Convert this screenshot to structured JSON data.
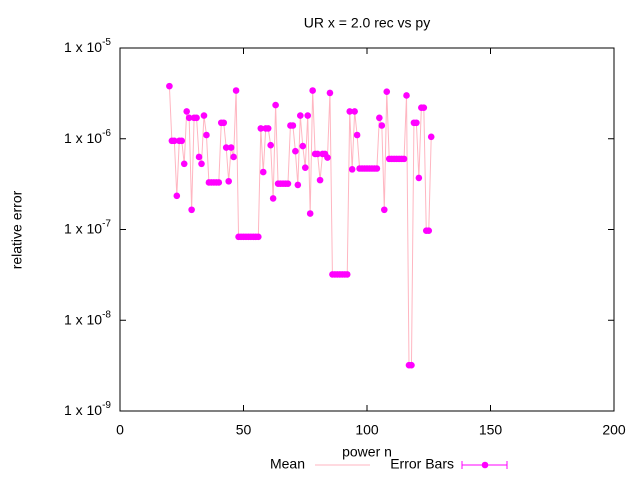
{
  "chart_data": {
    "type": "scatter",
    "title": "UR x = 2.0 rec vs py",
    "x_label": "power n",
    "y_label": "relative error",
    "y_scale": "log",
    "xlim": [
      0,
      200
    ],
    "xticks": [
      0,
      50,
      100,
      150,
      200
    ],
    "ylim": [
      1e-09,
      1e-05
    ],
    "yticks": [
      {
        "value": 1e-09,
        "label": "1 x 10",
        "sup": "-9"
      },
      {
        "value": 1e-08,
        "label": "1 x 10",
        "sup": "-8"
      },
      {
        "value": 1e-07,
        "label": "1 x 10",
        "sup": "-7"
      },
      {
        "value": 1e-06,
        "label": "1 x 10",
        "sup": "-6"
      },
      {
        "value": 1e-05,
        "label": "1 x 10",
        "sup": "-5"
      }
    ],
    "legend": [
      {
        "name": "Mean",
        "color": "#ffb6c1"
      },
      {
        "name": "Error Bars",
        "color": "#ff00ff"
      }
    ],
    "x": [
      20,
      21,
      22,
      23,
      24,
      25,
      26,
      27,
      28,
      29,
      30,
      31,
      32,
      33,
      34,
      35,
      36,
      37,
      38,
      39,
      40,
      41,
      42,
      43,
      44,
      45,
      46,
      47,
      48,
      49,
      50,
      51,
      52,
      53,
      54,
      55,
      56,
      57,
      58,
      59,
      60,
      61,
      62,
      63,
      64,
      65,
      66,
      67,
      68,
      69,
      70,
      71,
      72,
      73,
      74,
      75,
      76,
      77,
      78,
      79,
      80,
      81,
      82,
      83,
      84,
      85,
      86,
      87,
      88,
      89,
      90,
      91,
      92,
      93,
      94,
      95,
      96,
      97,
      98,
      99,
      100,
      101,
      102,
      103,
      104,
      105,
      106,
      107,
      108,
      109,
      110,
      111,
      112,
      113,
      114,
      115,
      116,
      117,
      118,
      119,
      120,
      121,
      122,
      123,
      124,
      125,
      126
    ],
    "values": [
      3.8e-06,
      9.5e-07,
      9.5e-07,
      2.35e-07,
      9.5e-07,
      9.5e-07,
      5.3e-07,
      2e-06,
      1.7e-06,
      1.65e-07,
      1.7e-06,
      1.7e-06,
      6.3e-07,
      5.3e-07,
      1.8e-06,
      1.1e-06,
      3.3e-07,
      3.3e-07,
      3.3e-07,
      3.3e-07,
      3.3e-07,
      1.5e-06,
      1.5e-06,
      8e-07,
      3.4e-07,
      8e-07,
      6.3e-07,
      3.4e-06,
      8.3e-08,
      8.3e-08,
      8.3e-08,
      8.3e-08,
      8.3e-08,
      8.3e-08,
      8.3e-08,
      8.3e-08,
      8.3e-08,
      1.3e-06,
      4.3e-07,
      1.3e-06,
      1.3e-06,
      8.5e-07,
      2.2e-07,
      2.35e-06,
      3.2e-07,
      3.2e-07,
      3.2e-07,
      3.2e-07,
      3.2e-07,
      1.4e-06,
      1.4e-06,
      7.3e-07,
      3.1e-07,
      1.8e-06,
      8.3e-07,
      4.8e-07,
      1.8e-06,
      1.5e-07,
      3.4e-06,
      6.8e-07,
      6.8e-07,
      3.5e-07,
      6.8e-07,
      6.8e-07,
      6.2e-07,
      3.2e-06,
      3.2e-08,
      3.2e-08,
      3.2e-08,
      3.2e-08,
      3.2e-08,
      3.2e-08,
      3.2e-08,
      2e-06,
      4.6e-07,
      2e-06,
      1.1e-06,
      4.7e-07,
      4.7e-07,
      4.7e-07,
      4.7e-07,
      4.7e-07,
      4.7e-07,
      4.7e-07,
      4.7e-07,
      1.7e-06,
      1.4e-06,
      1.65e-07,
      3.3e-06,
      6e-07,
      6e-07,
      6e-07,
      6e-07,
      6e-07,
      6e-07,
      6e-07,
      3e-06,
      3.2e-09,
      3.2e-09,
      1.5e-06,
      1.5e-06,
      3.7e-07,
      2.2e-06,
      2.2e-06,
      9.7e-08,
      9.7e-08,
      1.05e-06
    ]
  }
}
